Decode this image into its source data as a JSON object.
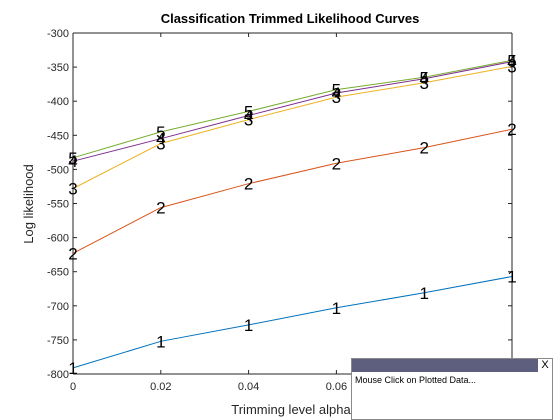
{
  "chart_data": {
    "type": "line",
    "title": "Classification Trimmed Likelihood Curves",
    "xlabel": "Trimming level alpha",
    "ylabel": "Log likelihood",
    "xlim": [
      0,
      0.1
    ],
    "ylim": [
      -800,
      -300
    ],
    "x_ticks": [
      "0",
      "0.02",
      "0.04",
      "0.06"
    ],
    "y_ticks": [
      "-300",
      "-350",
      "-400",
      "-450",
      "-500",
      "-550",
      "-600",
      "-650",
      "-700",
      "-750",
      "-800"
    ],
    "x": [
      0,
      0.02,
      0.04,
      0.06,
      0.08,
      0.1
    ],
    "grid": false,
    "legend": "none",
    "series": [
      {
        "name": "1",
        "color": "#0072BD",
        "values": [
          -791,
          -752,
          -728,
          -703,
          -681,
          -657
        ]
      },
      {
        "name": "2",
        "color": "#D95319",
        "values": [
          -623,
          -556,
          -521,
          -491,
          -468,
          -441
        ]
      },
      {
        "name": "3",
        "color": "#EDB120",
        "values": [
          -528,
          -462,
          -427,
          -394,
          -373,
          -349
        ]
      },
      {
        "name": "4",
        "color": "#7E2F8E",
        "values": [
          -488,
          -455,
          -421,
          -388,
          -367,
          -342
        ]
      },
      {
        "name": "5",
        "color": "#77AC30",
        "values": [
          -483,
          -445,
          -415,
          -383,
          -365,
          -340
        ]
      }
    ]
  },
  "click_panel": {
    "message": "Mouse Click on Plotted Data...",
    "close_label": "X"
  }
}
